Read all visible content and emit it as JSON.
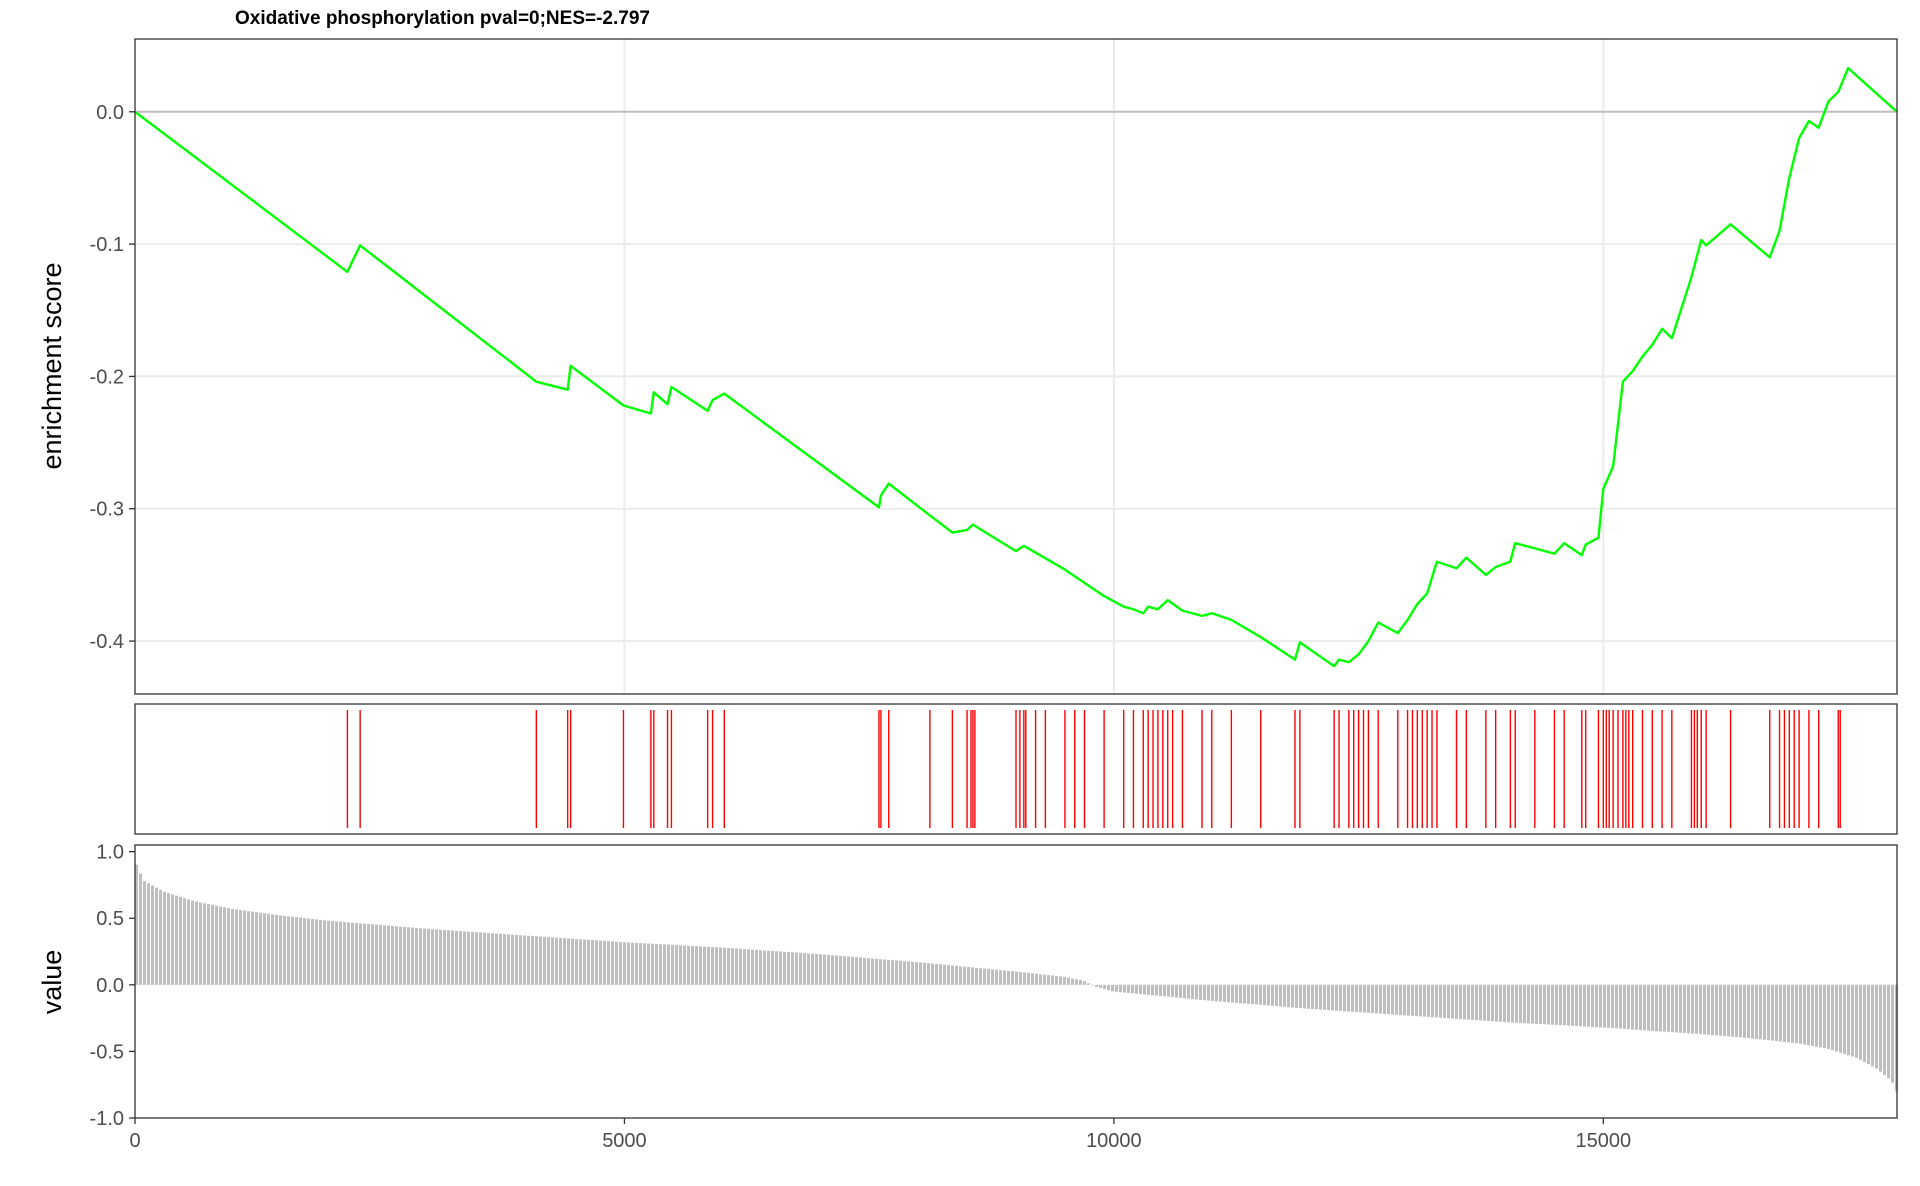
{
  "chart_data": [
    {
      "type": "line",
      "title": "Oxidative phosphorylation pval=0;NES=-2.797",
      "ylabel": "enrichment score",
      "xlabel": "",
      "xlim": [
        0,
        18000
      ],
      "ylim": [
        -0.44,
        0.055
      ],
      "yticks": [
        0.0,
        -0.1,
        -0.2,
        -0.3,
        -0.4
      ],
      "ytick_labels": [
        "0.0",
        "-0.1",
        "-0.2",
        "-0.3",
        "-0.4"
      ],
      "xgrid": [
        5000,
        10000,
        15000
      ],
      "zero_line": true,
      "grid": true,
      "line_color": "#00ff00",
      "series": [
        {
          "x": [
            0,
            2170,
            2240,
            2300,
            4100,
            4420,
            4450,
            4990,
            5270,
            5300,
            5440,
            5480,
            5850,
            5900,
            6020,
            7600,
            7620,
            7700,
            8120,
            8350,
            8500,
            8560,
            9000,
            9080,
            9500,
            9900,
            10100,
            10200,
            10300,
            10350,
            10450,
            10550,
            10700,
            10900,
            11000,
            11200,
            11500,
            11850,
            11900,
            12250,
            12300,
            12400,
            12500,
            12600,
            12700,
            12900,
            13000,
            13100,
            13200,
            13300,
            13500,
            13600,
            13800,
            13900,
            14050,
            14100,
            14300,
            14500,
            14600,
            14780,
            14820,
            14950,
            15000,
            15100,
            15200,
            15300,
            15400,
            15500,
            15600,
            15700,
            15900,
            16000,
            16050,
            16300,
            16700,
            16800,
            16900,
            17000,
            17100,
            17200,
            17300,
            17400,
            17500,
            18000
          ],
          "y": [
            0.0,
            -0.121,
            -0.11,
            -0.101,
            -0.204,
            -0.21,
            -0.192,
            -0.222,
            -0.228,
            -0.212,
            -0.221,
            -0.208,
            -0.226,
            -0.218,
            -0.213,
            -0.299,
            -0.29,
            -0.281,
            -0.305,
            -0.318,
            -0.316,
            -0.312,
            -0.332,
            -0.328,
            -0.346,
            -0.366,
            -0.374,
            -0.376,
            -0.379,
            -0.374,
            -0.376,
            -0.369,
            -0.377,
            -0.381,
            -0.379,
            -0.384,
            -0.397,
            -0.414,
            -0.401,
            -0.419,
            -0.414,
            -0.416,
            -0.41,
            -0.4,
            -0.386,
            -0.394,
            -0.384,
            -0.372,
            -0.364,
            -0.34,
            -0.345,
            -0.337,
            -0.35,
            -0.344,
            -0.34,
            -0.326,
            -0.33,
            -0.334,
            -0.326,
            -0.335,
            -0.327,
            -0.322,
            -0.285,
            -0.268,
            -0.204,
            -0.196,
            -0.185,
            -0.176,
            -0.164,
            -0.171,
            -0.125,
            -0.097,
            -0.101,
            -0.085,
            -0.11,
            -0.09,
            -0.05,
            -0.02,
            -0.007,
            -0.012,
            0.008,
            0.015,
            0.033,
            0.0
          ]
        }
      ]
    },
    {
      "type": "scatter",
      "title": "",
      "mark_color": "#ff0000",
      "xlim": [
        0,
        18000
      ],
      "hit_positions": [
        2170,
        2300,
        4100,
        4420,
        4450,
        4990,
        5270,
        5300,
        5440,
        5480,
        5850,
        5900,
        6020,
        7600,
        7620,
        7700,
        8120,
        8350,
        8500,
        8540,
        8560,
        8580,
        9000,
        9040,
        9080,
        9100,
        9200,
        9300,
        9500,
        9600,
        9700,
        9900,
        10100,
        10200,
        10300,
        10350,
        10400,
        10450,
        10500,
        10550,
        10600,
        10700,
        10900,
        11000,
        11200,
        11500,
        11850,
        11900,
        12250,
        12300,
        12400,
        12450,
        12500,
        12550,
        12600,
        12700,
        12900,
        13000,
        13050,
        13100,
        13150,
        13200,
        13250,
        13300,
        13500,
        13600,
        13800,
        13900,
        14050,
        14100,
        14300,
        14500,
        14600,
        14780,
        14820,
        14950,
        15000,
        15030,
        15060,
        15100,
        15150,
        15200,
        15230,
        15260,
        15300,
        15400,
        15500,
        15600,
        15700,
        15900,
        15930,
        15960,
        16000,
        16050,
        16300,
        16700,
        16800,
        16850,
        16900,
        16950,
        17000,
        17100,
        17200,
        17400,
        17420
      ]
    },
    {
      "type": "bar",
      "title": "",
      "ylabel": "value",
      "xlabel": "",
      "bar_color": "#bebebe",
      "xlim": [
        0,
        18000
      ],
      "ylim": [
        -1.0,
        1.05
      ],
      "yticks": [
        1.0,
        0.5,
        0.0,
        -0.5,
        -1.0
      ],
      "ytick_labels": [
        "1.0",
        "0.5",
        "0.0",
        "-0.5",
        "-1.0"
      ],
      "xticks": [
        0,
        5000,
        10000,
        15000
      ],
      "xtick_labels": [
        "0",
        "5000",
        "10000",
        "15000"
      ],
      "ranked_curve": {
        "x": [
          0,
          30,
          100,
          300,
          600,
          1000,
          1500,
          2000,
          3000,
          4000,
          5000,
          6000,
          7000,
          8000,
          9000,
          9500,
          9700,
          9800,
          10000,
          11000,
          12000,
          13000,
          14000,
          15000,
          16000,
          16500,
          17000,
          17300,
          17600,
          17800,
          17950,
          18000
        ],
        "y": [
          0.95,
          0.88,
          0.78,
          0.7,
          0.63,
          0.57,
          0.52,
          0.48,
          0.42,
          0.37,
          0.32,
          0.28,
          0.23,
          0.17,
          0.1,
          0.06,
          0.03,
          -0.01,
          -0.05,
          -0.12,
          -0.18,
          -0.23,
          -0.28,
          -0.32,
          -0.37,
          -0.4,
          -0.44,
          -0.48,
          -0.55,
          -0.63,
          -0.72,
          -0.8
        ]
      }
    }
  ]
}
